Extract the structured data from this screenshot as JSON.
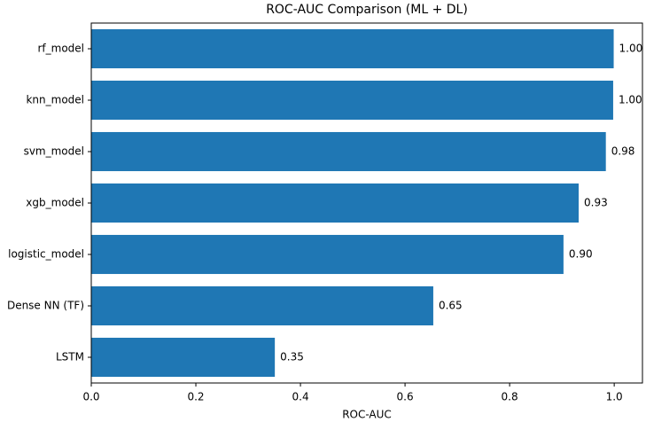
{
  "chart_data": {
    "type": "barh",
    "title": "ROC-AUC Comparison (ML + DL)",
    "xlabel": "ROC-AUC",
    "categories": [
      "rf_model",
      "knn_model",
      "svm_model",
      "xgb_model",
      "logistic_model",
      "Dense NN (TF)",
      "LSTM"
    ],
    "values": [
      0.999,
      0.998,
      0.984,
      0.932,
      0.903,
      0.654,
      0.351
    ],
    "value_labels": [
      "1.00",
      "1.00",
      "0.98",
      "0.93",
      "0.90",
      "0.65",
      "0.35"
    ],
    "color": "#1f77b4",
    "xlim": [
      0,
      1.054
    ],
    "xticks": [
      {
        "value": 0,
        "label": "0.0"
      },
      0.2,
      0.4,
      0.6,
      0.8,
      {
        "value": 1,
        "label": "1.0"
      }
    ]
  }
}
